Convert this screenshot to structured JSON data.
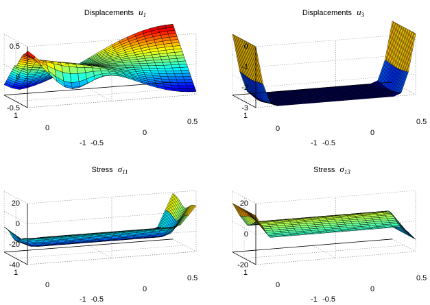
{
  "chart_data": [
    {
      "type": "surface",
      "title": {
        "prefix": "Displacements",
        "symbol": "u",
        "subscript": "1"
      },
      "x_ticks": [
        "-0.5",
        "0",
        "0.5"
      ],
      "y_ticks": [
        "-1",
        "0",
        "1"
      ],
      "z_ticks": [
        "-0.5",
        "0",
        "0.5"
      ],
      "xlim": [
        -0.5,
        0.5
      ],
      "ylim": [
        -1,
        1
      ],
      "zlim": [
        -0.5,
        0.5
      ],
      "surface_kind": "u1",
      "colormap": "jet",
      "grid": true
    },
    {
      "type": "surface",
      "title": {
        "prefix": "Displacements",
        "symbol": "u",
        "subscript": "3"
      },
      "x_ticks": [
        "-0.5",
        "0",
        "0.5"
      ],
      "y_ticks": [
        "-1",
        "0",
        "1"
      ],
      "z_ticks": [
        "-3",
        "-2",
        "-1",
        "0"
      ],
      "xlim": [
        -0.5,
        0.5
      ],
      "ylim": [
        -1,
        1
      ],
      "zlim": [
        -3,
        0
      ],
      "surface_kind": "u3",
      "colormap": "jet",
      "grid": true
    },
    {
      "type": "surface",
      "title": {
        "prefix": "Stress",
        "symbol": "σ",
        "subscript": "11"
      },
      "x_ticks": [
        "-0.5",
        "0",
        "0.5"
      ],
      "y_ticks": [
        "-1",
        "0",
        "1"
      ],
      "z_ticks": [
        "-40",
        "-20",
        "0",
        "20"
      ],
      "xlim": [
        -0.5,
        0.5
      ],
      "ylim": [
        -1,
        1
      ],
      "zlim": [
        -40,
        20
      ],
      "surface_kind": "s11",
      "colormap": "jet",
      "grid": true
    },
    {
      "type": "surface",
      "title": {
        "prefix": "Stress",
        "symbol": "σ",
        "subscript": "13"
      },
      "x_ticks": [
        "-0.5",
        "0",
        "0.5"
      ],
      "y_ticks": [
        "-1",
        "0",
        "1"
      ],
      "z_ticks": [
        "-20",
        "0",
        "20"
      ],
      "xlim": [
        -0.5,
        0.5
      ],
      "ylim": [
        -1,
        1
      ],
      "zlim": [
        -20,
        20
      ],
      "surface_kind": "s13",
      "colormap": "jet",
      "grid": true
    }
  ]
}
